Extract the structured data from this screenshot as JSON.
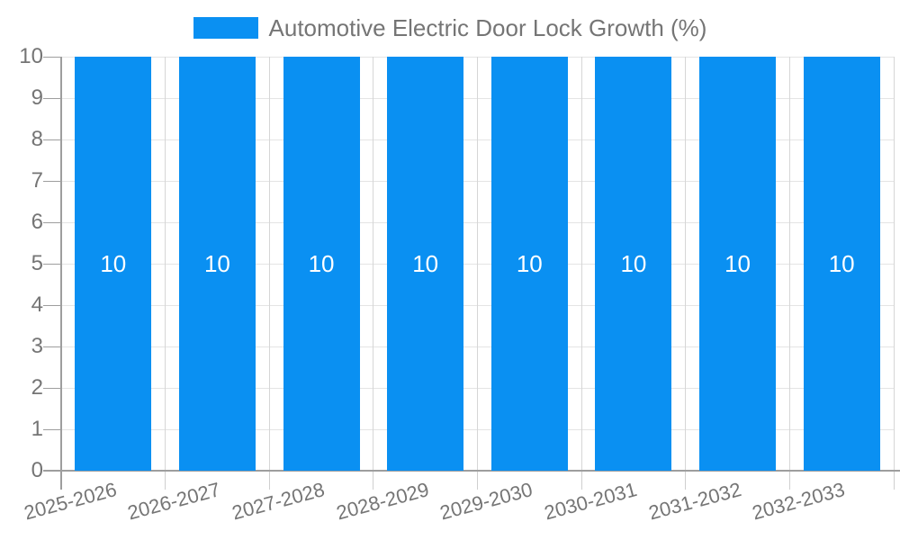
{
  "legend": {
    "label": "Automotive Electric Door Lock Growth (%)",
    "swatch_color": "#0a90f2"
  },
  "chart_data": {
    "type": "bar",
    "title": "Automotive Electric Door Lock Growth (%)",
    "categories": [
      "2025-2026",
      "2026-2027",
      "2027-2028",
      "2028-2029",
      "2029-2030",
      "2030-2031",
      "2031-2032",
      "2032-2033"
    ],
    "values": [
      10,
      10,
      10,
      10,
      10,
      10,
      10,
      10
    ],
    "value_labels": [
      "10",
      "10",
      "10",
      "10",
      "10",
      "10",
      "10",
      "10"
    ],
    "xlabel": "",
    "ylabel": "",
    "ylim": [
      0,
      10
    ],
    "yticks": [
      0,
      1,
      2,
      3,
      4,
      5,
      6,
      7,
      8,
      9,
      10
    ],
    "grid": "on",
    "legend_position": "top-center",
    "bar_color": "#0a90f2",
    "value_label_color": "#ffffff",
    "axis_text_color": "#757575",
    "axis_line_color": "#9e9e9e",
    "h_gridline_color": "#e4e4e4",
    "v_gridline_color": "#d6d6d6",
    "x_label_rotation_deg": -15
  }
}
